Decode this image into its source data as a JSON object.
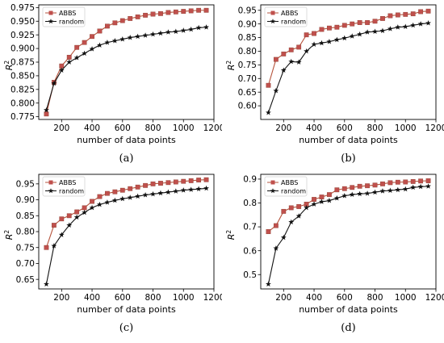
{
  "colors": {
    "abbs": "#c0504d",
    "abbs_fill": "#c0504d",
    "abbs_line": "#b5533c",
    "random": "#111111"
  },
  "chart_data": [
    {
      "panel_label": "(a)",
      "type": "line",
      "xlabel": "number of data points",
      "ylabel": "R",
      "ylabel_sup": "2",
      "xlim": [
        50,
        1200
      ],
      "ylim": [
        0.77,
        0.98
      ],
      "xticks": [
        200,
        400,
        600,
        800,
        1000,
        1200
      ],
      "yticks": [
        0.775,
        0.8,
        0.825,
        0.85,
        0.875,
        0.9,
        0.925,
        0.95,
        0.975
      ],
      "ytick_labels": [
        "0.775",
        "0.800",
        "0.825",
        "0.850",
        "0.875",
        "0.900",
        "0.925",
        "0.950",
        "0.975"
      ],
      "legend_position": "top-left",
      "x": [
        100,
        150,
        200,
        250,
        300,
        350,
        400,
        450,
        500,
        550,
        600,
        650,
        700,
        750,
        800,
        850,
        900,
        950,
        1000,
        1050,
        1100,
        1150
      ],
      "series": [
        {
          "name": "ABBS",
          "marker": "square",
          "values": [
            0.78,
            0.838,
            0.868,
            0.884,
            0.902,
            0.911,
            0.922,
            0.932,
            0.941,
            0.947,
            0.951,
            0.955,
            0.958,
            0.961,
            0.963,
            0.964,
            0.966,
            0.967,
            0.968,
            0.969,
            0.97,
            0.97
          ]
        },
        {
          "name": "random",
          "marker": "star",
          "values": [
            0.787,
            0.836,
            0.86,
            0.875,
            0.883,
            0.891,
            0.899,
            0.906,
            0.911,
            0.914,
            0.917,
            0.92,
            0.922,
            0.924,
            0.926,
            0.928,
            0.93,
            0.931,
            0.933,
            0.935,
            0.938,
            0.939
          ]
        }
      ]
    },
    {
      "panel_label": "(b)",
      "type": "line",
      "xlabel": "number of data points",
      "ylabel": "R",
      "ylabel_sup": "2",
      "xlim": [
        50,
        1200
      ],
      "ylim": [
        0.55,
        0.97
      ],
      "xticks": [
        200,
        400,
        600,
        800,
        1000,
        1200
      ],
      "yticks": [
        0.6,
        0.65,
        0.7,
        0.75,
        0.8,
        0.85,
        0.9,
        0.95
      ],
      "ytick_labels": [
        "0.60",
        "0.65",
        "0.70",
        "0.75",
        "0.80",
        "0.85",
        "0.90",
        "0.95"
      ],
      "legend_position": "top-left",
      "x": [
        100,
        150,
        200,
        250,
        300,
        350,
        400,
        450,
        500,
        550,
        600,
        650,
        700,
        750,
        800,
        850,
        900,
        950,
        1000,
        1050,
        1100,
        1150
      ],
      "series": [
        {
          "name": "ABBS",
          "marker": "square",
          "values": [
            0.675,
            0.77,
            0.79,
            0.805,
            0.815,
            0.86,
            0.865,
            0.88,
            0.885,
            0.888,
            0.895,
            0.9,
            0.905,
            0.905,
            0.91,
            0.92,
            0.93,
            0.933,
            0.935,
            0.937,
            0.945,
            0.947
          ]
        },
        {
          "name": "random",
          "marker": "star",
          "values": [
            0.575,
            0.655,
            0.73,
            0.762,
            0.76,
            0.8,
            0.825,
            0.83,
            0.835,
            0.842,
            0.848,
            0.855,
            0.862,
            0.87,
            0.872,
            0.875,
            0.882,
            0.888,
            0.89,
            0.895,
            0.9,
            0.903
          ]
        }
      ]
    },
    {
      "panel_label": "(c)",
      "type": "line",
      "xlabel": "number of data points",
      "ylabel": "R",
      "ylabel_sup": "2",
      "xlim": [
        50,
        1200
      ],
      "ylim": [
        0.62,
        0.98
      ],
      "xticks": [
        200,
        400,
        600,
        800,
        1000,
        1200
      ],
      "yticks": [
        0.65,
        0.7,
        0.75,
        0.8,
        0.85,
        0.9,
        0.95
      ],
      "ytick_labels": [
        "0.65",
        "0.70",
        "0.75",
        "0.80",
        "0.85",
        "0.90",
        "0.95"
      ],
      "legend_position": "top-left",
      "x": [
        100,
        150,
        200,
        250,
        300,
        350,
        400,
        450,
        500,
        550,
        600,
        650,
        700,
        750,
        800,
        850,
        900,
        950,
        1000,
        1050,
        1100,
        1150
      ],
      "series": [
        {
          "name": "ABBS",
          "marker": "square",
          "values": [
            0.75,
            0.82,
            0.84,
            0.85,
            0.862,
            0.875,
            0.895,
            0.91,
            0.92,
            0.925,
            0.93,
            0.935,
            0.94,
            0.945,
            0.95,
            0.952,
            0.954,
            0.956,
            0.958,
            0.96,
            0.962,
            0.963
          ]
        },
        {
          "name": "random",
          "marker": "star",
          "values": [
            0.635,
            0.755,
            0.79,
            0.82,
            0.845,
            0.86,
            0.875,
            0.885,
            0.892,
            0.898,
            0.903,
            0.907,
            0.911,
            0.915,
            0.918,
            0.921,
            0.924,
            0.927,
            0.93,
            0.932,
            0.934,
            0.936
          ]
        }
      ]
    },
    {
      "panel_label": "(d)",
      "type": "line",
      "xlabel": "number of data points",
      "ylabel": "R",
      "ylabel_sup": "2",
      "xlim": [
        50,
        1200
      ],
      "ylim": [
        0.44,
        0.92
      ],
      "xticks": [
        200,
        400,
        600,
        800,
        1000,
        1200
      ],
      "yticks": [
        0.5,
        0.6,
        0.7,
        0.8,
        0.9
      ],
      "ytick_labels": [
        "0.5",
        "0.6",
        "0.7",
        "0.8",
        "0.9"
      ],
      "legend_position": "top-left",
      "x": [
        100,
        150,
        200,
        250,
        300,
        350,
        400,
        450,
        500,
        550,
        600,
        650,
        700,
        750,
        800,
        850,
        900,
        950,
        1000,
        1050,
        1100,
        1150
      ],
      "series": [
        {
          "name": "ABBS",
          "marker": "square",
          "values": [
            0.68,
            0.705,
            0.765,
            0.78,
            0.785,
            0.795,
            0.815,
            0.825,
            0.835,
            0.855,
            0.86,
            0.865,
            0.87,
            0.872,
            0.875,
            0.88,
            0.885,
            0.887,
            0.888,
            0.89,
            0.892,
            0.893
          ]
        },
        {
          "name": "random",
          "marker": "star",
          "values": [
            0.46,
            0.61,
            0.655,
            0.72,
            0.745,
            0.78,
            0.795,
            0.805,
            0.81,
            0.82,
            0.83,
            0.835,
            0.838,
            0.84,
            0.845,
            0.85,
            0.852,
            0.855,
            0.858,
            0.865,
            0.868,
            0.87
          ]
        }
      ]
    }
  ]
}
